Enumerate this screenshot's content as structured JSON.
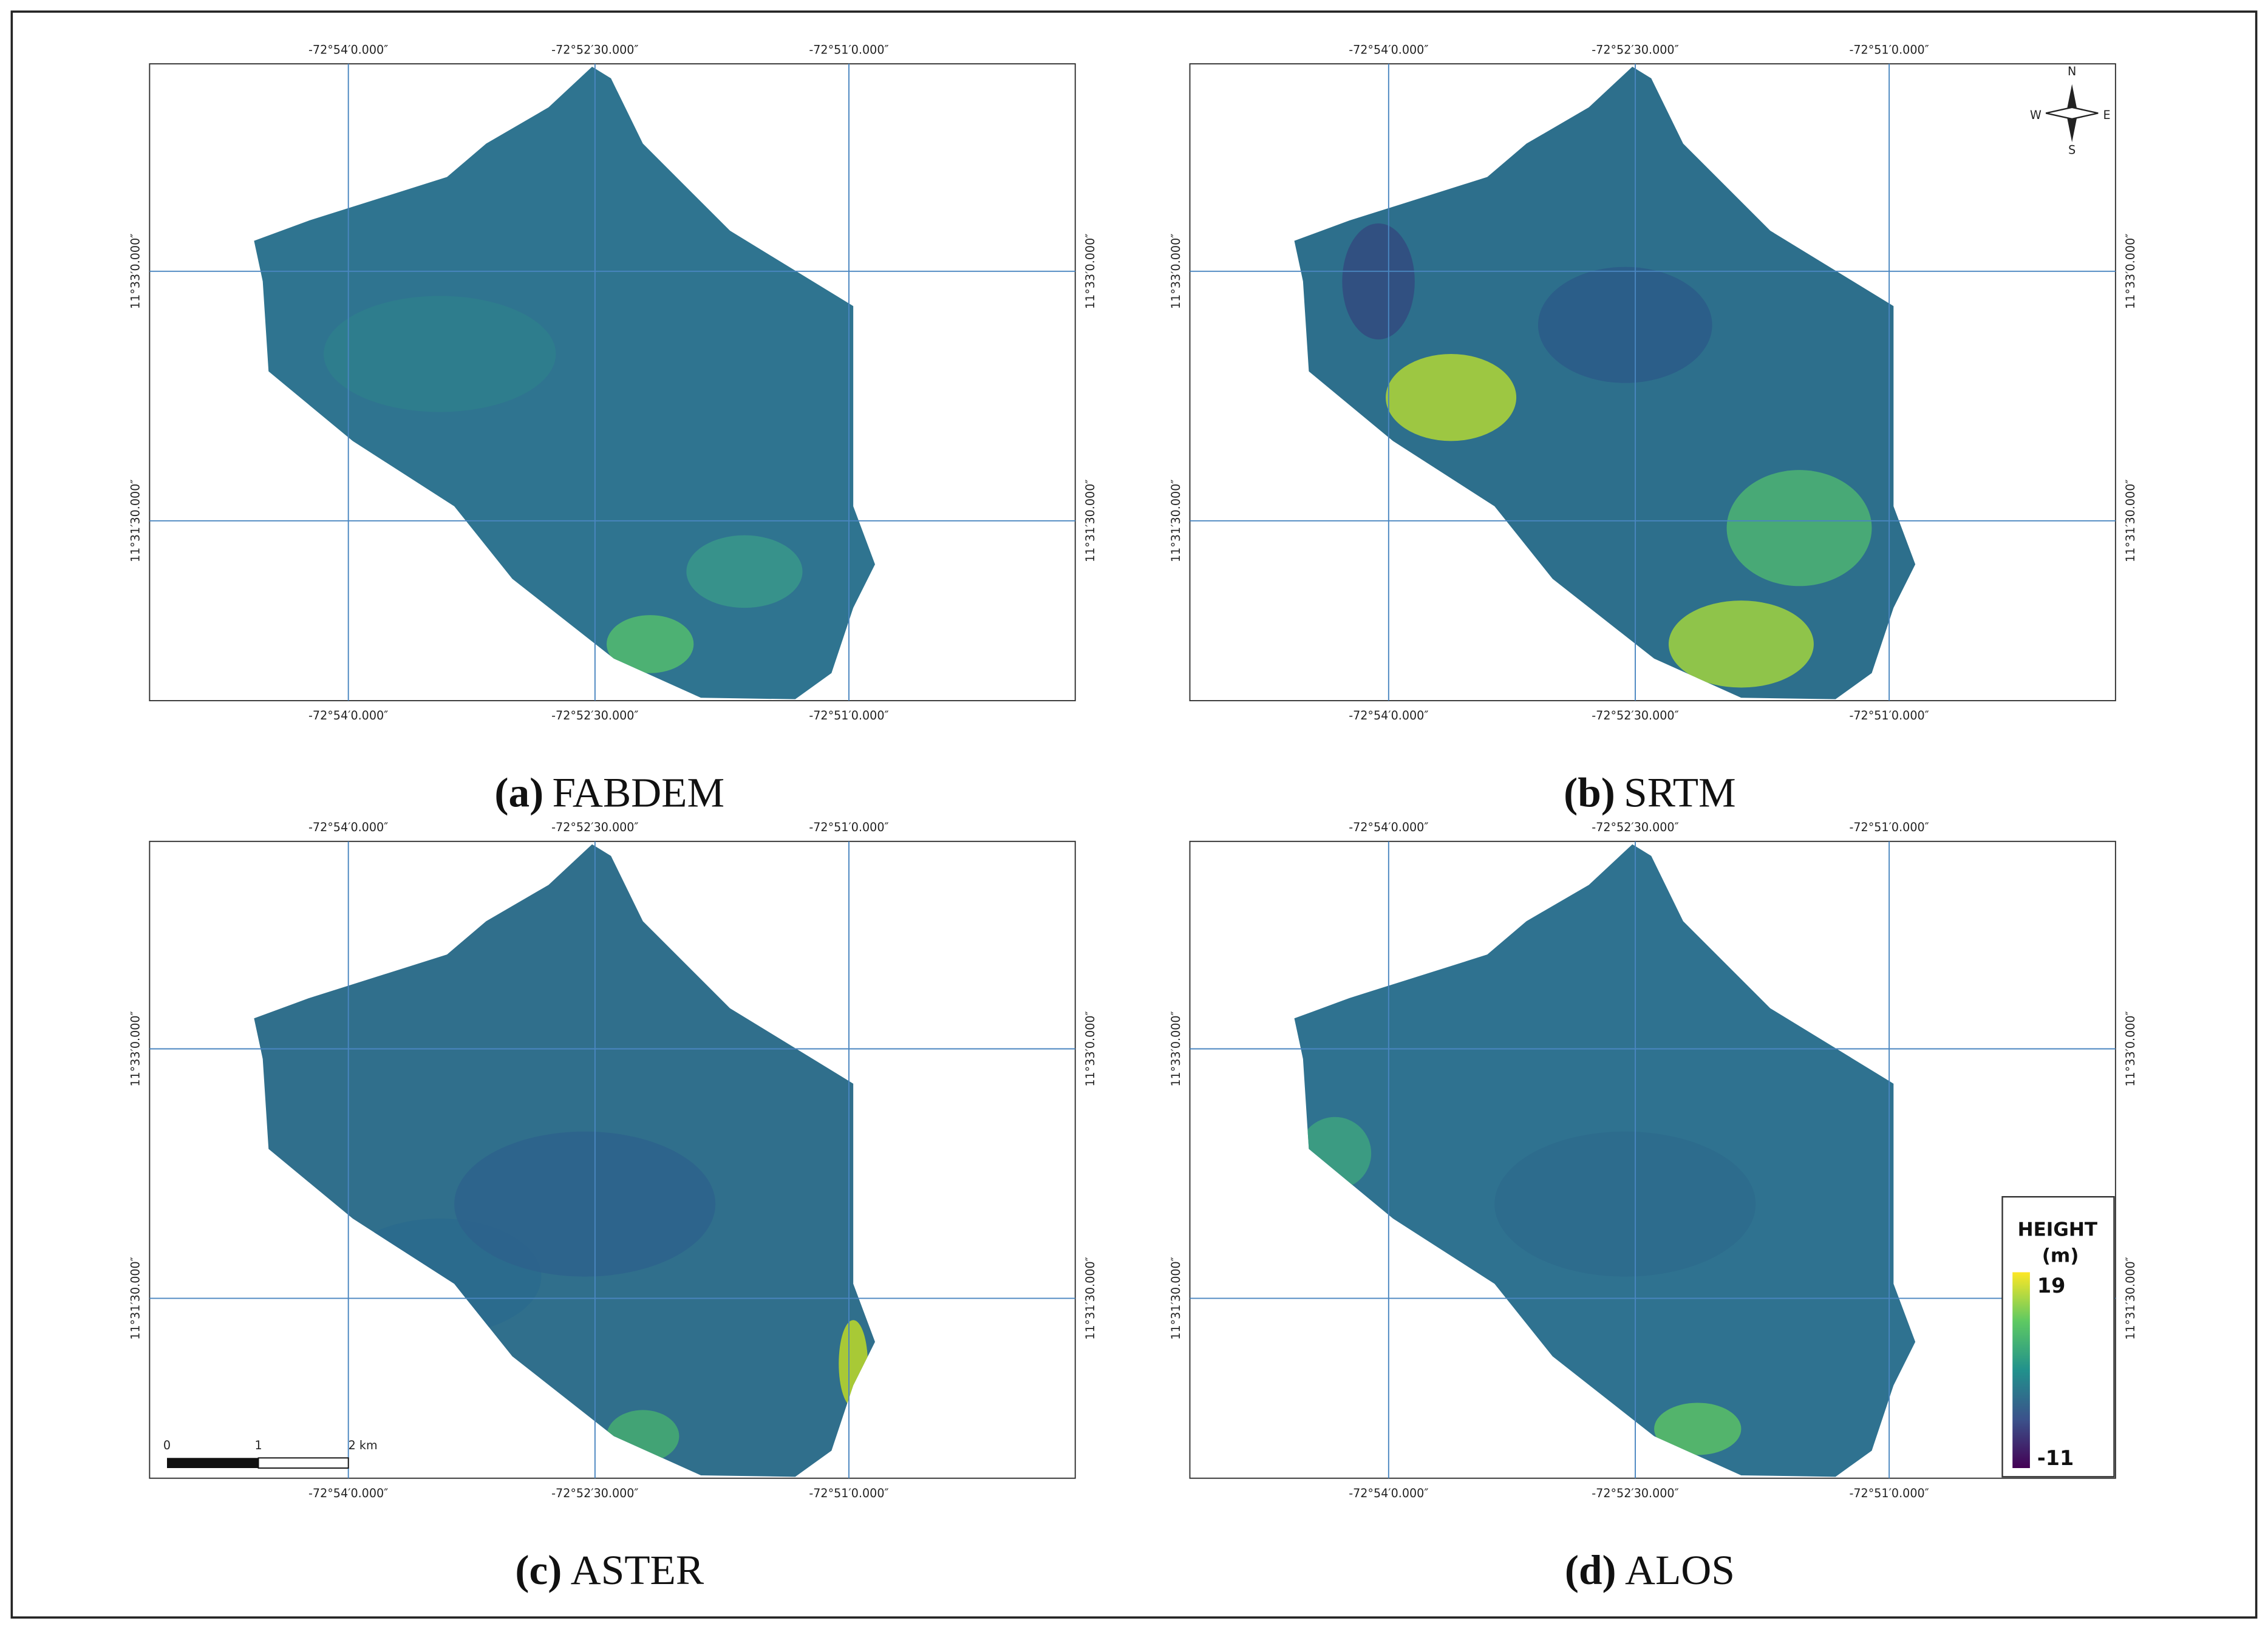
{
  "panels": [
    {
      "letter": "(a)",
      "name": "FABDEM"
    },
    {
      "letter": "(b)",
      "name": "SRTM"
    },
    {
      "letter": "(c)",
      "name": "ASTER"
    },
    {
      "letter": "(d)",
      "name": "ALOS"
    }
  ],
  "longitude_labels": [
    "-72°54′0.000″",
    "-72°52′30.000″",
    "-72°51′0.000″"
  ],
  "latitude_labels": [
    "11°33′0.000″",
    "11°31′30.000″"
  ],
  "compass": {
    "north": "N",
    "south": "S",
    "east": "E",
    "west": "W"
  },
  "scale_bar": {
    "labels": [
      "0",
      "1",
      "2 km"
    ]
  },
  "legend": {
    "title": "HEIGHT",
    "unit": "(m)",
    "max": 19,
    "min": -11
  }
}
